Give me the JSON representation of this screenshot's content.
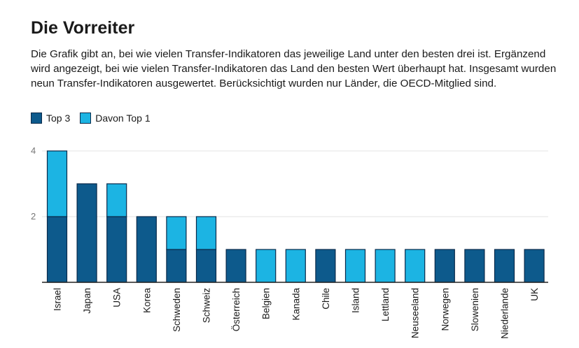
{
  "title": "Die Vorreiter",
  "description": "Die Grafik gibt an, bei wie vielen Transfer-Indikatoren das jeweilige Land unter den besten drei ist. Ergänzend wird angezeigt, bei wie vielen Transfer-Indikatoren das Land den besten Wert überhaupt hat. Insgesamt wurden neun Transfer-Indikatoren ausgewertet. Berücksichtigt wurden nur Länder, die OECD-Mitglied sind.",
  "legend": [
    {
      "label": "Top 3",
      "color": "#0d5a8c"
    },
    {
      "label": "Davon Top 1",
      "color": "#1cb4e3"
    }
  ],
  "chart_data": {
    "type": "bar",
    "stacked": true,
    "categories": [
      "Israel",
      "Japan",
      "USA",
      "Korea",
      "Schweden",
      "Schweiz",
      "Österreich",
      "Belgien",
      "Kanada",
      "Chile",
      "Island",
      "Lettland",
      "Neuseeland",
      "Norwegen",
      "Slowenien",
      "Niederlande",
      "UK"
    ],
    "series": [
      {
        "name": "Top 3",
        "color": "#0d5a8c",
        "values": [
          2,
          3,
          2,
          2,
          1,
          1,
          1,
          0,
          0,
          1,
          0,
          0,
          0,
          1,
          1,
          1,
          1
        ]
      },
      {
        "name": "Davon Top 1",
        "color": "#1cb4e3",
        "values": [
          2,
          0,
          1,
          0,
          1,
          1,
          0,
          1,
          1,
          0,
          1,
          1,
          1,
          0,
          0,
          0,
          0
        ]
      }
    ],
    "yticks": [
      2,
      4
    ],
    "ylim": [
      0,
      4
    ],
    "grid": true,
    "legend_position": "top-left"
  }
}
